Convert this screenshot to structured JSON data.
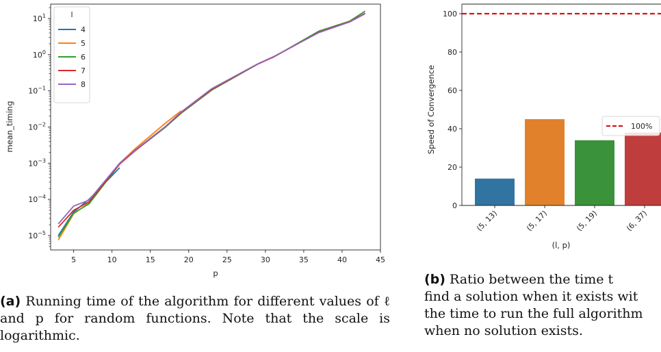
{
  "chart_data": [
    {
      "type": "line",
      "xlabel": "p",
      "ylabel": "mean_timing",
      "yscale": "log",
      "xlim": [
        2,
        45
      ],
      "ylim": [
        4e-06,
        25
      ],
      "xticks": [
        5,
        10,
        15,
        20,
        25,
        30,
        35,
        40,
        45
      ],
      "yticks": [
        1e-05,
        0.0001,
        0.001,
        0.01,
        0.1,
        1,
        10
      ],
      "ytick_labels": [
        {
          "base": "10",
          "exp": "−5"
        },
        {
          "base": "10",
          "exp": "−4"
        },
        {
          "base": "10",
          "exp": "−3"
        },
        {
          "base": "10",
          "exp": "−2"
        },
        {
          "base": "10",
          "exp": "−1"
        },
        {
          "base": "10",
          "exp": "0"
        },
        {
          "base": "10",
          "exp": "1"
        }
      ],
      "legend_title": "l",
      "legend_position": "top-left",
      "series": [
        {
          "name": "4",
          "color": "#1f77b4",
          "x": [
            3,
            5,
            7,
            11
          ],
          "y": [
            1e-05,
            4.5e-05,
            0.0001,
            0.00075
          ]
        },
        {
          "name": "5",
          "color": "#ff7f0e",
          "x": [
            3,
            5,
            7,
            11,
            13,
            17,
            19
          ],
          "y": [
            7.5e-06,
            4e-05,
            8e-05,
            0.001,
            0.0025,
            0.013,
            0.028
          ]
        },
        {
          "name": "6",
          "color": "#2ca02c",
          "x": [
            3,
            5,
            7,
            11,
            13,
            17,
            19,
            23,
            29,
            31,
            37,
            41,
            43
          ],
          "y": [
            9e-06,
            4.2e-05,
            7.5e-05,
            0.00095,
            0.0022,
            0.01,
            0.024,
            0.105,
            0.55,
            0.85,
            4.5,
            8.5,
            16
          ]
        },
        {
          "name": "7",
          "color": "#d62728",
          "x": [
            3,
            5,
            7,
            11,
            13,
            17,
            19,
            23,
            29,
            31,
            37,
            41,
            43
          ],
          "y": [
            1.7e-05,
            5e-05,
            8.5e-05,
            0.00095,
            0.0022,
            0.0105,
            0.025,
            0.11,
            0.55,
            0.85,
            4.2,
            8.2,
            14
          ]
        },
        {
          "name": "8",
          "color": "#9467bd",
          "x": [
            3,
            5,
            7,
            11,
            13,
            17,
            19,
            23,
            29,
            31,
            37,
            41,
            43
          ],
          "y": [
            2.1e-05,
            6.5e-05,
            9.5e-05,
            0.001,
            0.0023,
            0.0105,
            0.026,
            0.115,
            0.56,
            0.87,
            4.1,
            8.0,
            13.5
          ]
        }
      ]
    },
    {
      "type": "bar",
      "xlabel": "(l, p)",
      "ylabel": "Speed of Convergence",
      "ylim": [
        0,
        105
      ],
      "yticks": [
        0,
        20,
        40,
        60,
        80,
        100
      ],
      "categories": [
        "(5, 13)",
        "(5, 17)",
        "(5, 19)",
        "(6, 37)"
      ],
      "values": [
        14,
        45,
        34,
        38
      ],
      "colors": [
        "#3274a1",
        "#e1812c",
        "#3a923a",
        "#c03d3e"
      ],
      "reference_line": {
        "value": 100,
        "label": "100%",
        "color": "#e01010"
      },
      "legend_position": "center-right"
    }
  ],
  "captions": {
    "a": {
      "tag": "(a)",
      "text": "Running time of the algorithm for different values of ℓ and p for random functions. Note that the scale is logarithmic."
    },
    "b": {
      "tag": "(b)",
      "lines": [
        "Ratio between the time t",
        "find a solution when it exists wit",
        "the time to run the full algorithm",
        "when no solution exists."
      ]
    }
  }
}
